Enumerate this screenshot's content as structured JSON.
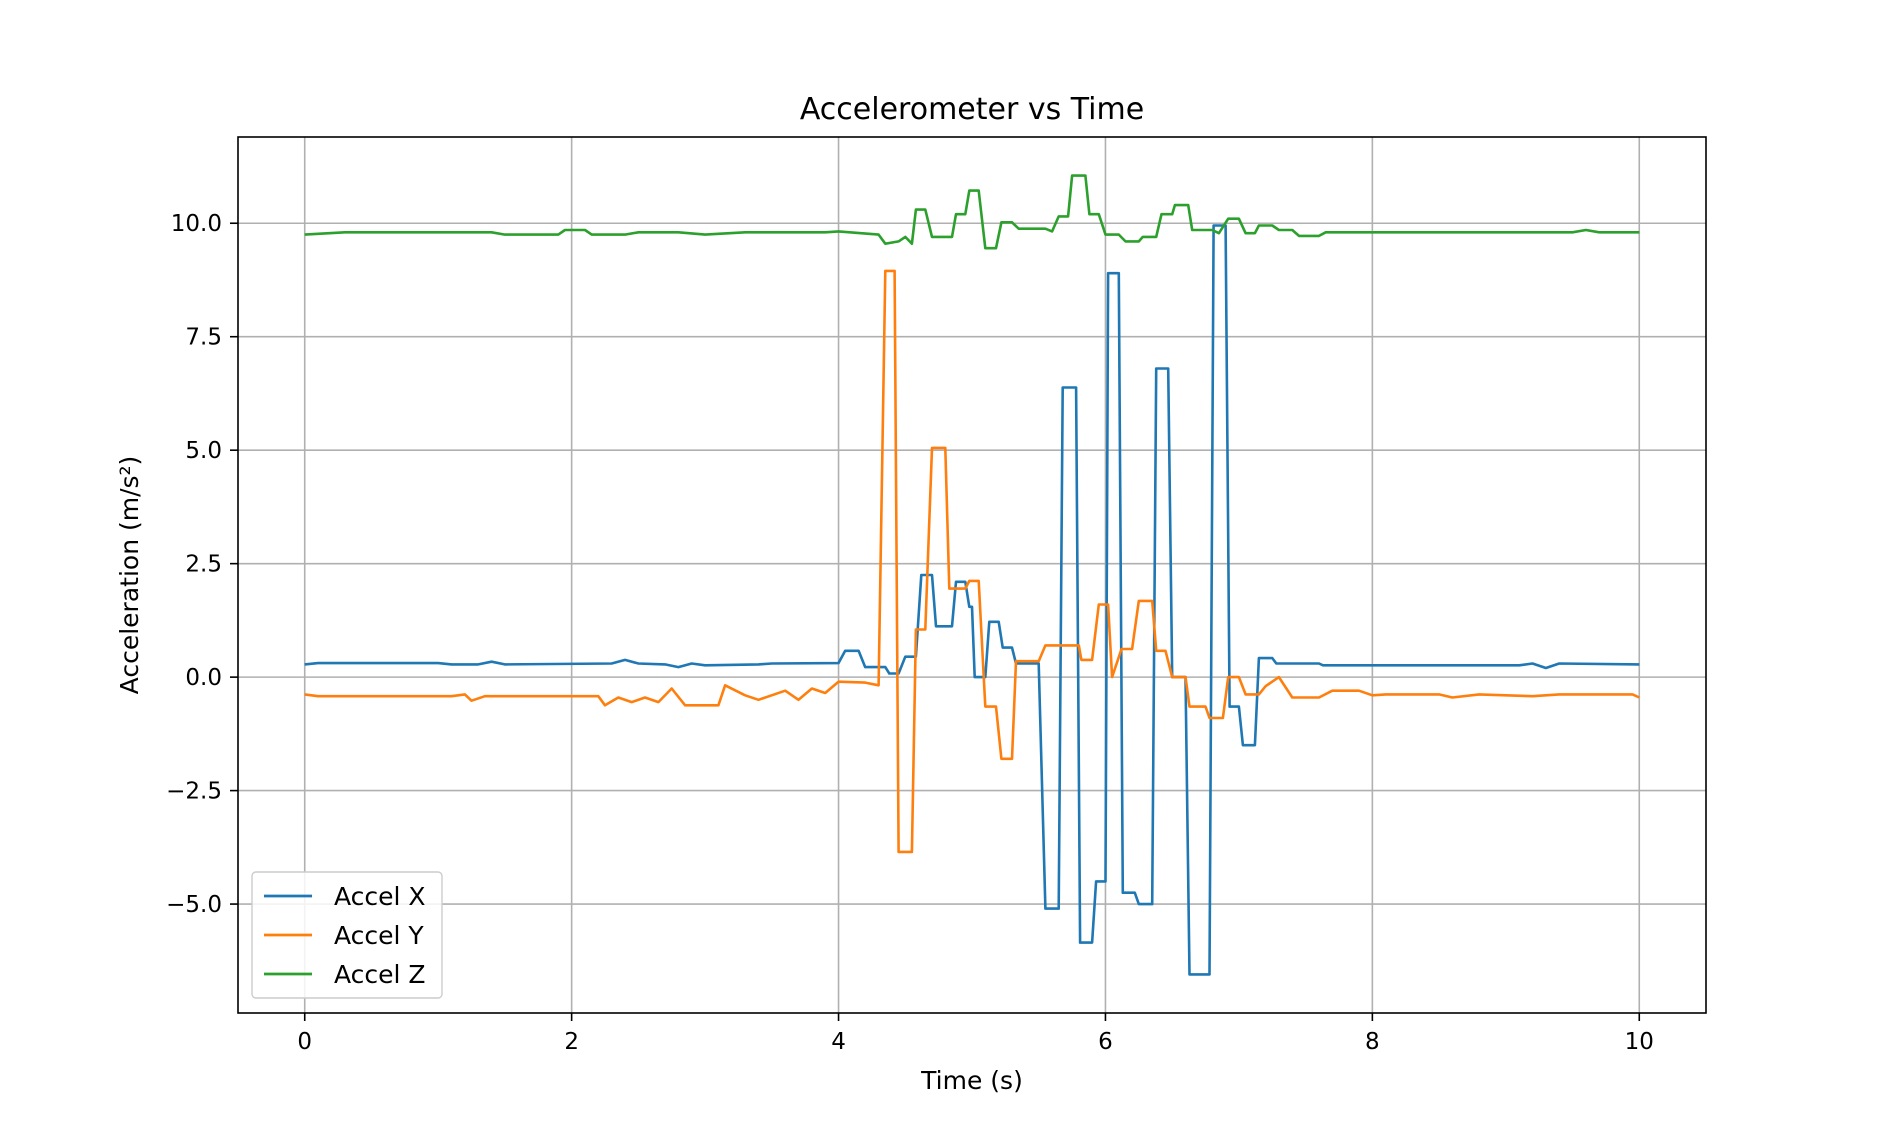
{
  "chart_data": {
    "type": "line",
    "title": "Accelerometer vs Time",
    "xlabel": "Time (s)",
    "ylabel": "Acceleration (m/s²)",
    "xlim": [
      -0.5,
      10.5
    ],
    "ylim": [
      -7.4,
      11.9
    ],
    "x_ticks": [
      0,
      2,
      4,
      6,
      8,
      10
    ],
    "x_tick_labels": [
      "0",
      "2",
      "4",
      "6",
      "8",
      "10"
    ],
    "y_ticks": [
      -5.0,
      -2.5,
      0.0,
      2.5,
      5.0,
      7.5,
      10.0
    ],
    "y_tick_labels": [
      "−5.0",
      "−2.5",
      "0.0",
      "2.5",
      "5.0",
      "7.5",
      "10.0"
    ],
    "grid": true,
    "legend_position": "lower-left",
    "series": [
      {
        "name": "Accel X",
        "color": "#1f77b4",
        "points": [
          [
            0,
            0.28
          ],
          [
            0.1,
            0.31
          ],
          [
            1.0,
            0.31
          ],
          [
            1.1,
            0.28
          ],
          [
            1.3,
            0.28
          ],
          [
            1.4,
            0.34
          ],
          [
            1.5,
            0.28
          ],
          [
            2.3,
            0.3
          ],
          [
            2.4,
            0.38
          ],
          [
            2.5,
            0.3
          ],
          [
            2.7,
            0.28
          ],
          [
            2.8,
            0.22
          ],
          [
            2.9,
            0.3
          ],
          [
            3.0,
            0.26
          ],
          [
            3.4,
            0.28
          ],
          [
            3.5,
            0.3
          ],
          [
            4.0,
            0.31
          ],
          [
            4.05,
            0.58
          ],
          [
            4.15,
            0.58
          ],
          [
            4.2,
            0.22
          ],
          [
            4.35,
            0.22
          ],
          [
            4.38,
            0.08
          ],
          [
            4.45,
            0.08
          ],
          [
            4.5,
            0.45
          ],
          [
            4.58,
            0.45
          ],
          [
            4.62,
            2.25
          ],
          [
            4.7,
            2.25
          ],
          [
            4.73,
            1.12
          ],
          [
            4.85,
            1.12
          ],
          [
            4.88,
            2.1
          ],
          [
            4.95,
            2.1
          ],
          [
            4.98,
            1.55
          ],
          [
            5.0,
            1.55
          ],
          [
            5.02,
            0.0
          ],
          [
            5.1,
            0.0
          ],
          [
            5.13,
            1.22
          ],
          [
            5.2,
            1.22
          ],
          [
            5.23,
            0.65
          ],
          [
            5.3,
            0.65
          ],
          [
            5.33,
            0.3
          ],
          [
            5.5,
            0.3
          ],
          [
            5.55,
            -5.1
          ],
          [
            5.65,
            -5.1
          ],
          [
            5.68,
            6.38
          ],
          [
            5.78,
            6.38
          ],
          [
            5.81,
            -5.85
          ],
          [
            5.9,
            -5.85
          ],
          [
            5.93,
            -4.5
          ],
          [
            6.0,
            -4.5
          ],
          [
            6.02,
            8.9
          ],
          [
            6.1,
            8.9
          ],
          [
            6.13,
            -4.75
          ],
          [
            6.22,
            -4.75
          ],
          [
            6.25,
            -5.0
          ],
          [
            6.35,
            -5.0
          ],
          [
            6.38,
            6.8
          ],
          [
            6.47,
            6.8
          ],
          [
            6.5,
            0.0
          ],
          [
            6.6,
            0.0
          ],
          [
            6.63,
            -6.55
          ],
          [
            6.78,
            -6.55
          ],
          [
            6.81,
            9.95
          ],
          [
            6.9,
            9.95
          ],
          [
            6.93,
            -0.65
          ],
          [
            7.0,
            -0.65
          ],
          [
            7.03,
            -1.5
          ],
          [
            7.12,
            -1.5
          ],
          [
            7.15,
            0.42
          ],
          [
            7.25,
            0.42
          ],
          [
            7.28,
            0.3
          ],
          [
            7.6,
            0.3
          ],
          [
            7.63,
            0.26
          ],
          [
            9.1,
            0.26
          ],
          [
            9.2,
            0.3
          ],
          [
            9.3,
            0.2
          ],
          [
            9.4,
            0.3
          ],
          [
            10.0,
            0.28
          ]
        ]
      },
      {
        "name": "Accel Y",
        "color": "#ff7f0e",
        "points": [
          [
            0,
            -0.38
          ],
          [
            0.1,
            -0.42
          ],
          [
            1.1,
            -0.42
          ],
          [
            1.2,
            -0.38
          ],
          [
            1.25,
            -0.52
          ],
          [
            1.35,
            -0.42
          ],
          [
            2.2,
            -0.42
          ],
          [
            2.25,
            -0.62
          ],
          [
            2.35,
            -0.45
          ],
          [
            2.45,
            -0.55
          ],
          [
            2.55,
            -0.45
          ],
          [
            2.65,
            -0.55
          ],
          [
            2.75,
            -0.25
          ],
          [
            2.85,
            -0.62
          ],
          [
            3.1,
            -0.62
          ],
          [
            3.15,
            -0.18
          ],
          [
            3.3,
            -0.4
          ],
          [
            3.4,
            -0.5
          ],
          [
            3.6,
            -0.3
          ],
          [
            3.7,
            -0.5
          ],
          [
            3.8,
            -0.25
          ],
          [
            3.9,
            -0.35
          ],
          [
            4.0,
            -0.1
          ],
          [
            4.2,
            -0.12
          ],
          [
            4.3,
            -0.18
          ],
          [
            4.35,
            8.95
          ],
          [
            4.42,
            8.95
          ],
          [
            4.45,
            -3.85
          ],
          [
            4.55,
            -3.85
          ],
          [
            4.58,
            1.05
          ],
          [
            4.65,
            1.05
          ],
          [
            4.7,
            5.05
          ],
          [
            4.8,
            5.05
          ],
          [
            4.83,
            1.95
          ],
          [
            4.95,
            1.95
          ],
          [
            4.98,
            2.12
          ],
          [
            5.05,
            2.12
          ],
          [
            5.1,
            -0.65
          ],
          [
            5.18,
            -0.65
          ],
          [
            5.22,
            -1.8
          ],
          [
            5.3,
            -1.8
          ],
          [
            5.33,
            0.35
          ],
          [
            5.5,
            0.35
          ],
          [
            5.55,
            0.7
          ],
          [
            5.8,
            0.7
          ],
          [
            5.82,
            0.38
          ],
          [
            5.9,
            0.38
          ],
          [
            5.95,
            1.6
          ],
          [
            6.02,
            1.6
          ],
          [
            6.05,
            0.0
          ],
          [
            6.12,
            0.62
          ],
          [
            6.2,
            0.62
          ],
          [
            6.25,
            1.68
          ],
          [
            6.35,
            1.68
          ],
          [
            6.38,
            0.58
          ],
          [
            6.45,
            0.58
          ],
          [
            6.5,
            0.0
          ],
          [
            6.6,
            0.0
          ],
          [
            6.63,
            -0.65
          ],
          [
            6.75,
            -0.65
          ],
          [
            6.78,
            -0.9
          ],
          [
            6.88,
            -0.9
          ],
          [
            6.92,
            0.0
          ],
          [
            7.0,
            0.0
          ],
          [
            7.05,
            -0.38
          ],
          [
            7.15,
            -0.38
          ],
          [
            7.2,
            -0.2
          ],
          [
            7.3,
            0.0
          ],
          [
            7.4,
            -0.45
          ],
          [
            7.6,
            -0.45
          ],
          [
            7.7,
            -0.3
          ],
          [
            7.9,
            -0.3
          ],
          [
            8.0,
            -0.4
          ],
          [
            8.1,
            -0.38
          ],
          [
            8.5,
            -0.38
          ],
          [
            8.6,
            -0.45
          ],
          [
            8.8,
            -0.38
          ],
          [
            9.2,
            -0.42
          ],
          [
            9.4,
            -0.38
          ],
          [
            9.95,
            -0.38
          ],
          [
            10.0,
            -0.45
          ]
        ]
      },
      {
        "name": "Accel Z",
        "color": "#2ca02c",
        "points": [
          [
            0,
            9.75
          ],
          [
            0.3,
            9.8
          ],
          [
            1.4,
            9.8
          ],
          [
            1.5,
            9.75
          ],
          [
            1.9,
            9.75
          ],
          [
            1.95,
            9.85
          ],
          [
            2.1,
            9.85
          ],
          [
            2.15,
            9.75
          ],
          [
            2.4,
            9.75
          ],
          [
            2.5,
            9.8
          ],
          [
            2.8,
            9.8
          ],
          [
            3.0,
            9.75
          ],
          [
            3.3,
            9.8
          ],
          [
            3.9,
            9.8
          ],
          [
            4.0,
            9.82
          ],
          [
            4.3,
            9.75
          ],
          [
            4.35,
            9.55
          ],
          [
            4.45,
            9.6
          ],
          [
            4.5,
            9.7
          ],
          [
            4.55,
            9.55
          ],
          [
            4.58,
            10.3
          ],
          [
            4.65,
            10.3
          ],
          [
            4.7,
            9.7
          ],
          [
            4.85,
            9.7
          ],
          [
            4.88,
            10.2
          ],
          [
            4.95,
            10.2
          ],
          [
            4.98,
            10.72
          ],
          [
            5.05,
            10.72
          ],
          [
            5.1,
            9.45
          ],
          [
            5.18,
            9.45
          ],
          [
            5.22,
            10.02
          ],
          [
            5.3,
            10.02
          ],
          [
            5.35,
            9.88
          ],
          [
            5.55,
            9.88
          ],
          [
            5.6,
            9.82
          ],
          [
            5.65,
            10.15
          ],
          [
            5.72,
            10.15
          ],
          [
            5.75,
            11.05
          ],
          [
            5.85,
            11.05
          ],
          [
            5.88,
            10.2
          ],
          [
            5.95,
            10.2
          ],
          [
            6.0,
            9.75
          ],
          [
            6.1,
            9.75
          ],
          [
            6.15,
            9.6
          ],
          [
            6.25,
            9.6
          ],
          [
            6.28,
            9.7
          ],
          [
            6.38,
            9.7
          ],
          [
            6.42,
            10.2
          ],
          [
            6.5,
            10.2
          ],
          [
            6.52,
            10.4
          ],
          [
            6.62,
            10.4
          ],
          [
            6.65,
            9.85
          ],
          [
            6.8,
            9.85
          ],
          [
            6.85,
            9.78
          ],
          [
            6.92,
            10.1
          ],
          [
            7.0,
            10.1
          ],
          [
            7.05,
            9.78
          ],
          [
            7.12,
            9.78
          ],
          [
            7.15,
            9.95
          ],
          [
            7.25,
            9.95
          ],
          [
            7.3,
            9.85
          ],
          [
            7.4,
            9.85
          ],
          [
            7.45,
            9.72
          ],
          [
            7.6,
            9.72
          ],
          [
            7.65,
            9.8
          ],
          [
            9.5,
            9.8
          ],
          [
            9.6,
            9.85
          ],
          [
            9.7,
            9.8
          ],
          [
            10.0,
            9.8
          ]
        ]
      }
    ]
  }
}
